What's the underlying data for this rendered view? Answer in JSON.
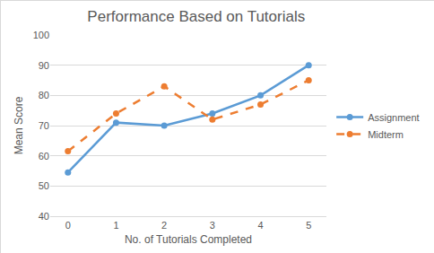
{
  "chart_data": {
    "type": "line",
    "title": "Performance Based on Tutorials",
    "x_label": "No. of Tutorials Completed",
    "y_label": "Mean Score",
    "categories": [
      "0",
      "1",
      "2",
      "3",
      "4",
      "5"
    ],
    "series": [
      {
        "name": "Assignment",
        "color": "#5b9bd5",
        "marker": "circle",
        "line_style": "solid",
        "values": [
          54.5,
          71,
          70,
          74,
          80,
          90
        ]
      },
      {
        "name": "Midterm",
        "color": "#ed7d31",
        "marker": "circle",
        "line_style": "dashed",
        "values": [
          61.5,
          74,
          83,
          72,
          77,
          85
        ]
      }
    ],
    "ylim": [
      40,
      100
    ],
    "yticks": [
      40,
      50,
      60,
      70,
      80,
      90,
      100
    ],
    "grid": true,
    "legend": "right"
  }
}
